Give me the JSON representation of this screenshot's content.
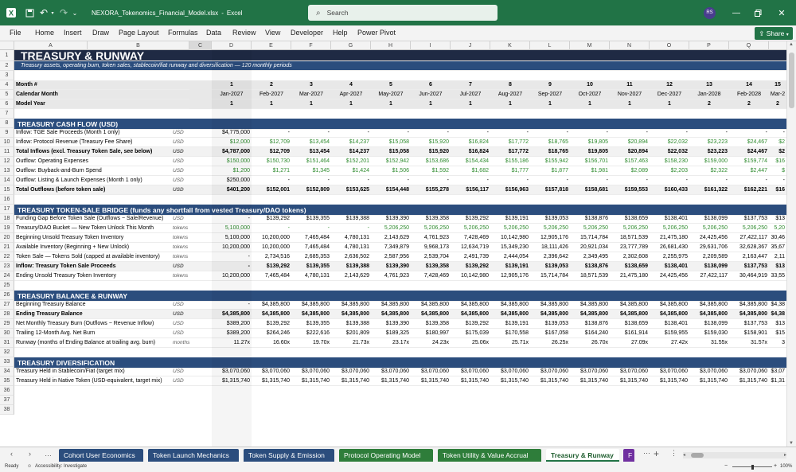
{
  "window": {
    "filename": "NEXORA_Tokenomics_Financial_Model.xlsx",
    "app": "Excel",
    "search_placeholder": "Search",
    "user_initials": "RS"
  },
  "menu": [
    "File",
    "Home",
    "Insert",
    "Draw",
    "Page Layout",
    "Formulas",
    "Data",
    "Review",
    "View",
    "Developer",
    "Help",
    "Power Pivot"
  ],
  "share_label": "Share",
  "columns": [
    "A",
    "B",
    "C",
    "D",
    "E",
    "F",
    "G",
    "H",
    "I",
    "J",
    "K",
    "L",
    "M",
    "N",
    "O",
    "P",
    "Q"
  ],
  "sheet": {
    "title": "TREASURY & RUNWAY",
    "subtitle": "Treasury assets, operating burn, token sales, stablecoin/fiat runway and diversification — 120 monthly periods",
    "month_row": {
      "label": "Month #",
      "values": [
        "1",
        "2",
        "3",
        "4",
        "5",
        "6",
        "7",
        "8",
        "9",
        "10",
        "11",
        "12",
        "13",
        "14",
        "15"
      ]
    },
    "calendar_row": {
      "label": "Calendar Month",
      "values": [
        "Jan-2027",
        "Feb-2027",
        "Mar-2027",
        "Apr-2027",
        "May-2027",
        "Jun-2027",
        "Jul-2027",
        "Aug-2027",
        "Sep-2027",
        "Oct-2027",
        "Nov-2027",
        "Dec-2027",
        "Jan-2028",
        "Feb-2028",
        "Mar-2"
      ]
    },
    "year_row": {
      "label": "Model Year",
      "values": [
        "1",
        "1",
        "1",
        "1",
        "1",
        "1",
        "1",
        "1",
        "1",
        "1",
        "1",
        "1",
        "2",
        "2",
        "2"
      ]
    },
    "sections": [
      {
        "row": 8,
        "title": "TREASURY CASH FLOW (USD)"
      },
      {
        "row": 17,
        "title": "TREASURY TOKEN-SALE BRIDGE (funds any shortfall from vested Treasury/DAO tokens)"
      },
      {
        "row": 26,
        "title": "TREASURY BALANCE & RUNWAY"
      },
      {
        "row": 33,
        "title": "TREASURY DIVERSIFICATION"
      }
    ],
    "data_rows": [
      {
        "row": 9,
        "label": "Inflow: TGE Sale Proceeds (Month 1 only)",
        "unit": "USD",
        "style": "",
        "values": [
          "$4,775,000",
          "-",
          "-",
          "-",
          "-",
          "-",
          "-",
          "-",
          "-",
          "-",
          "-",
          "-",
          "-",
          "-",
          "-"
        ]
      },
      {
        "row": 10,
        "label": "Inflow: Protocol Revenue (Treasury Fee Share)",
        "unit": "USD",
        "style": "green",
        "values": [
          "$12,000",
          "$12,709",
          "$13,454",
          "$14,237",
          "$15,058",
          "$15,920",
          "$16,824",
          "$17,772",
          "$18,765",
          "$19,805",
          "$20,894",
          "$22,032",
          "$23,223",
          "$24,467",
          "$2"
        ]
      },
      {
        "row": 11,
        "label": "Total Inflows (excl. Treasury Token Sale, see below)",
        "unit": "USD",
        "style": "boldbg",
        "values": [
          "$4,787,000",
          "$12,709",
          "$13,454",
          "$14,237",
          "$15,058",
          "$15,920",
          "$16,824",
          "$17,772",
          "$18,765",
          "$19,805",
          "$20,894",
          "$22,032",
          "$23,223",
          "$24,467",
          "$2"
        ]
      },
      {
        "row": 12,
        "label": "Outflow: Operating Expenses",
        "unit": "USD",
        "style": "green",
        "values": [
          "$150,000",
          "$150,730",
          "$151,464",
          "$152,201",
          "$152,942",
          "$153,686",
          "$154,434",
          "$155,186",
          "$155,942",
          "$156,701",
          "$157,463",
          "$158,230",
          "$159,000",
          "$159,774",
          "$16"
        ]
      },
      {
        "row": 13,
        "label": "Outflow: Buyback-and-Burn Spend",
        "unit": "USD",
        "style": "green",
        "values": [
          "$1,200",
          "$1,271",
          "$1,345",
          "$1,424",
          "$1,506",
          "$1,592",
          "$1,682",
          "$1,777",
          "$1,877",
          "$1,981",
          "$2,089",
          "$2,203",
          "$2,322",
          "$2,447",
          "$"
        ]
      },
      {
        "row": 14,
        "label": "Outflow: Listing & Launch Expenses (Month 1 only)",
        "unit": "USD",
        "style": "",
        "values": [
          "$250,000",
          "-",
          "-",
          "-",
          "-",
          "-",
          "-",
          "-",
          "-",
          "-",
          "-",
          "-",
          "-",
          "-",
          "-"
        ]
      },
      {
        "row": 15,
        "label": "Total Outflows (before token sale)",
        "unit": "USD",
        "style": "boldbg",
        "values": [
          "$401,200",
          "$152,001",
          "$152,809",
          "$153,625",
          "$154,448",
          "$155,278",
          "$156,117",
          "$156,963",
          "$157,818",
          "$158,681",
          "$159,553",
          "$160,433",
          "$161,322",
          "$162,221",
          "$16"
        ]
      },
      {
        "row": 18,
        "label": "Funding Gap Before Token Sale (Outflows − Sale/Revenue)",
        "unit": "USD",
        "style": "",
        "values": [
          "-",
          "$139,292",
          "$139,355",
          "$139,388",
          "$139,390",
          "$139,358",
          "$139,292",
          "$139,191",
          "$139,053",
          "$138,876",
          "$138,659",
          "$138,401",
          "$138,099",
          "$137,753",
          "$13"
        ]
      },
      {
        "row": 19,
        "label": "Treasury/DAO Bucket — New Token Unlock This Month",
        "unit": "tokens",
        "style": "green",
        "values": [
          "5,100,000",
          "-",
          "-",
          "-",
          "5,206,250",
          "5,206,250",
          "5,206,250",
          "5,206,250",
          "5,206,250",
          "5,206,250",
          "5,206,250",
          "5,206,250",
          "5,206,250",
          "5,206,250",
          "5,20"
        ]
      },
      {
        "row": 20,
        "label": "Beginning Unsold Treasury Token Inventory",
        "unit": "tokens",
        "style": "",
        "values": [
          "5,100,000",
          "10,200,000",
          "7,465,484",
          "4,780,131",
          "2,143,629",
          "4,761,923",
          "7,428,469",
          "10,142,980",
          "12,905,176",
          "15,714,784",
          "18,571,539",
          "21,475,180",
          "24,425,456",
          "27,422,117",
          "30,46"
        ]
      },
      {
        "row": 21,
        "label": "Available Inventory (Beginning + New Unlock)",
        "unit": "tokens",
        "style": "",
        "values": [
          "10,200,000",
          "10,200,000",
          "7,465,484",
          "4,780,131",
          "7,349,879",
          "9,968,173",
          "12,634,719",
          "15,349,230",
          "18,111,426",
          "20,921,034",
          "23,777,789",
          "26,681,430",
          "29,631,706",
          "32,628,367",
          "35,67"
        ]
      },
      {
        "row": 22,
        "label": "Token Sale — Tokens Sold (capped at available inventory)",
        "unit": "tokens",
        "style": "",
        "values": [
          "-",
          "2,734,516",
          "2,685,353",
          "2,636,502",
          "2,587,956",
          "2,539,704",
          "2,491,739",
          "2,444,054",
          "2,396,642",
          "2,349,495",
          "2,302,608",
          "2,255,975",
          "2,209,589",
          "2,163,447",
          "2,11"
        ]
      },
      {
        "row": 23,
        "label": "Inflow: Treasury Token Sale Proceeds",
        "unit": "USD",
        "style": "boldbg",
        "values": [
          "-",
          "$139,292",
          "$139,355",
          "$139,388",
          "$139,390",
          "$139,358",
          "$139,292",
          "$139,191",
          "$139,053",
          "$138,876",
          "$138,659",
          "$138,401",
          "$138,099",
          "$137,753",
          "$13"
        ]
      },
      {
        "row": 24,
        "label": "Ending Unsold Treasury Token Inventory",
        "unit": "tokens",
        "style": "",
        "values": [
          "10,200,000",
          "7,465,484",
          "4,780,131",
          "2,143,629",
          "4,761,923",
          "7,428,469",
          "10,142,980",
          "12,905,176",
          "15,714,784",
          "18,571,539",
          "21,475,180",
          "24,425,456",
          "27,422,117",
          "30,464,919",
          "33,55"
        ]
      },
      {
        "row": 27,
        "label": "Beginning Treasury Balance",
        "unit": "USD",
        "style": "",
        "values": [
          "-",
          "$4,385,800",
          "$4,385,800",
          "$4,385,800",
          "$4,385,800",
          "$4,385,800",
          "$4,385,800",
          "$4,385,800",
          "$4,385,800",
          "$4,385,800",
          "$4,385,800",
          "$4,385,800",
          "$4,385,800",
          "$4,385,800",
          "$4,38"
        ]
      },
      {
        "row": 28,
        "label": "Ending Treasury Balance",
        "unit": "USD",
        "style": "boldbg",
        "values": [
          "$4,385,800",
          "$4,385,800",
          "$4,385,800",
          "$4,385,800",
          "$4,385,800",
          "$4,385,800",
          "$4,385,800",
          "$4,385,800",
          "$4,385,800",
          "$4,385,800",
          "$4,385,800",
          "$4,385,800",
          "$4,385,800",
          "$4,385,800",
          "$4,38"
        ]
      },
      {
        "row": 29,
        "label": "Net Monthly Treasury Burn (Outflows − Revenue Inflow)",
        "unit": "USD",
        "style": "",
        "values": [
          "$389,200",
          "$139,292",
          "$139,355",
          "$139,388",
          "$139,390",
          "$139,358",
          "$139,292",
          "$139,191",
          "$139,053",
          "$138,876",
          "$138,659",
          "$138,401",
          "$138,099",
          "$137,753",
          "$13"
        ]
      },
      {
        "row": 30,
        "label": "Trailing 12-Month Avg. Net Burn",
        "unit": "USD",
        "style": "",
        "values": [
          "$389,200",
          "$264,246",
          "$222,616",
          "$201,809",
          "$189,325",
          "$180,997",
          "$175,039",
          "$170,558",
          "$167,058",
          "$164,240",
          "$161,914",
          "$159,955",
          "$159,030",
          "$158,901",
          "$15"
        ]
      },
      {
        "row": 31,
        "label": "Runway (months of Ending Balance at trailing avg. burn)",
        "unit": "months",
        "style": "",
        "values": [
          "11.27x",
          "16.60x",
          "19.70x",
          "21.73x",
          "23.17x",
          "24.23x",
          "25.06x",
          "25.71x",
          "26.25x",
          "26.70x",
          "27.09x",
          "27.42x",
          "31.55x",
          "31.57x",
          "3"
        ]
      },
      {
        "row": 34,
        "label": "Treasury Held in Stablecoin/Fiat (target mix)",
        "unit": "USD",
        "style": "",
        "values": [
          "$3,070,060",
          "$3,070,060",
          "$3,070,060",
          "$3,070,060",
          "$3,070,060",
          "$3,070,060",
          "$3,070,060",
          "$3,070,060",
          "$3,070,060",
          "$3,070,060",
          "$3,070,060",
          "$3,070,060",
          "$3,070,060",
          "$3,070,060",
          "$3,07"
        ]
      },
      {
        "row": 35,
        "label": "Treasury Held in Native Token (USD-equivalent, target mix)",
        "unit": "USD",
        "style": "",
        "values": [
          "$1,315,740",
          "$1,315,740",
          "$1,315,740",
          "$1,315,740",
          "$1,315,740",
          "$1,315,740",
          "$1,315,740",
          "$1,315,740",
          "$1,315,740",
          "$1,315,740",
          "$1,315,740",
          "$1,315,740",
          "$1,315,740",
          "$1,315,740",
          "$1,31"
        ]
      }
    ]
  },
  "tabs": [
    {
      "label": "Cohort User Economics",
      "color": "#2b4d7d",
      "active": false
    },
    {
      "label": "Token Launch Mechanics",
      "color": "#2b4d7d",
      "active": false
    },
    {
      "label": "Token Supply & Emission",
      "color": "#2b4d7d",
      "active": false
    },
    {
      "label": "Protocol Operating Model",
      "color": "#2e7d3a",
      "active": false
    },
    {
      "label": "Token Utility & Value Accrual",
      "color": "#2e7d3a",
      "active": false
    },
    {
      "label": "Treasury & Runway",
      "color": "#ffffff",
      "active": true
    },
    {
      "label": "F",
      "color": "#7030a0",
      "active": false
    }
  ],
  "status": {
    "ready": "Ready",
    "accessibility": "Accessibility: Investigate",
    "zoom": "100%"
  }
}
